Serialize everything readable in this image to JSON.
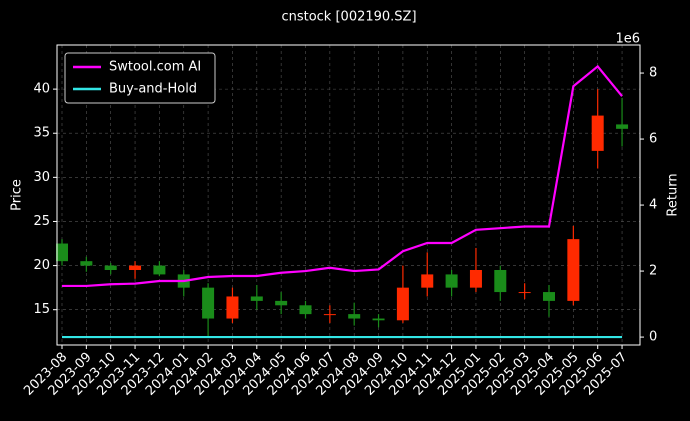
{
  "chart_data": {
    "type": "candlestick",
    "title": "cnstock [002190.SZ]",
    "y_label": "Price",
    "y2_label": "Return",
    "y2_offset_label": "1e6",
    "x": [
      "2023-08",
      "2023-09",
      "2023-10",
      "2023-11",
      "2023-12",
      "2024-01",
      "2024-02",
      "2024-03",
      "2024-04",
      "2024-05",
      "2024-06",
      "2024-07",
      "2024-08",
      "2024-09",
      "2024-10",
      "2024-11",
      "2024-12",
      "2025-01",
      "2025-02",
      "2025-03",
      "2025-04",
      "2025-05",
      "2025-06",
      "2025-07"
    ],
    "open": [
      22.5,
      20.5,
      20,
      19.5,
      20,
      19,
      17.5,
      14,
      16.5,
      16,
      15.5,
      14.5,
      14.5,
      14,
      13.8,
      17.5,
      19,
      17.5,
      19.5,
      17,
      17,
      16,
      33,
      36
    ],
    "high": [
      23,
      21,
      20.3,
      20.5,
      20.5,
      19.5,
      18,
      17.5,
      17.8,
      17,
      16,
      15.5,
      15.8,
      14.5,
      20,
      21.5,
      19.5,
      22,
      20,
      18,
      17.8,
      24.5,
      40,
      39
    ],
    "low": [
      20,
      19.3,
      19,
      18.5,
      18.8,
      16.5,
      12,
      13.5,
      15,
      14.5,
      14,
      13.5,
      13.2,
      13,
      13.5,
      16.5,
      16.5,
      17,
      16,
      16.2,
      14.2,
      15.5,
      31,
      33.5
    ],
    "close": [
      20.5,
      20,
      19.5,
      20,
      19,
      17.5,
      14,
      16.5,
      16,
      15.5,
      14.5,
      14.5,
      14,
      13.8,
      17.5,
      19,
      17.5,
      19.5,
      17,
      17,
      16,
      23,
      37,
      35.5
    ],
    "up_color": "#ff2a00",
    "down_color": "#1a8c1a",
    "series": [
      {
        "name": "Swtool.com AI",
        "color": "#ff00ff",
        "axis": "y2",
        "values": [
          1.55,
          1.55,
          1.6,
          1.62,
          1.7,
          1.7,
          1.82,
          1.85,
          1.85,
          1.95,
          2.0,
          2.1,
          2.0,
          2.05,
          2.6,
          2.85,
          2.85,
          3.25,
          3.3,
          3.35,
          3.35,
          7.6,
          8.2,
          7.3
        ]
      },
      {
        "name": "Buy-and-Hold",
        "color": "#33e6e6",
        "axis": "y2",
        "values": [
          0,
          0,
          0,
          0,
          0,
          0,
          0,
          0,
          0,
          0,
          0,
          0,
          0,
          0,
          0,
          0,
          0,
          0,
          0,
          0,
          0,
          0,
          0,
          0
        ]
      }
    ],
    "ylim": [
      11,
      45
    ],
    "yticks": [
      15,
      20,
      25,
      30,
      35,
      40
    ],
    "y2lim": [
      -0.24,
      8.85
    ],
    "y2ticks": [
      0,
      2,
      4,
      6,
      8
    ],
    "grid": true,
    "legend": "upper left"
  }
}
